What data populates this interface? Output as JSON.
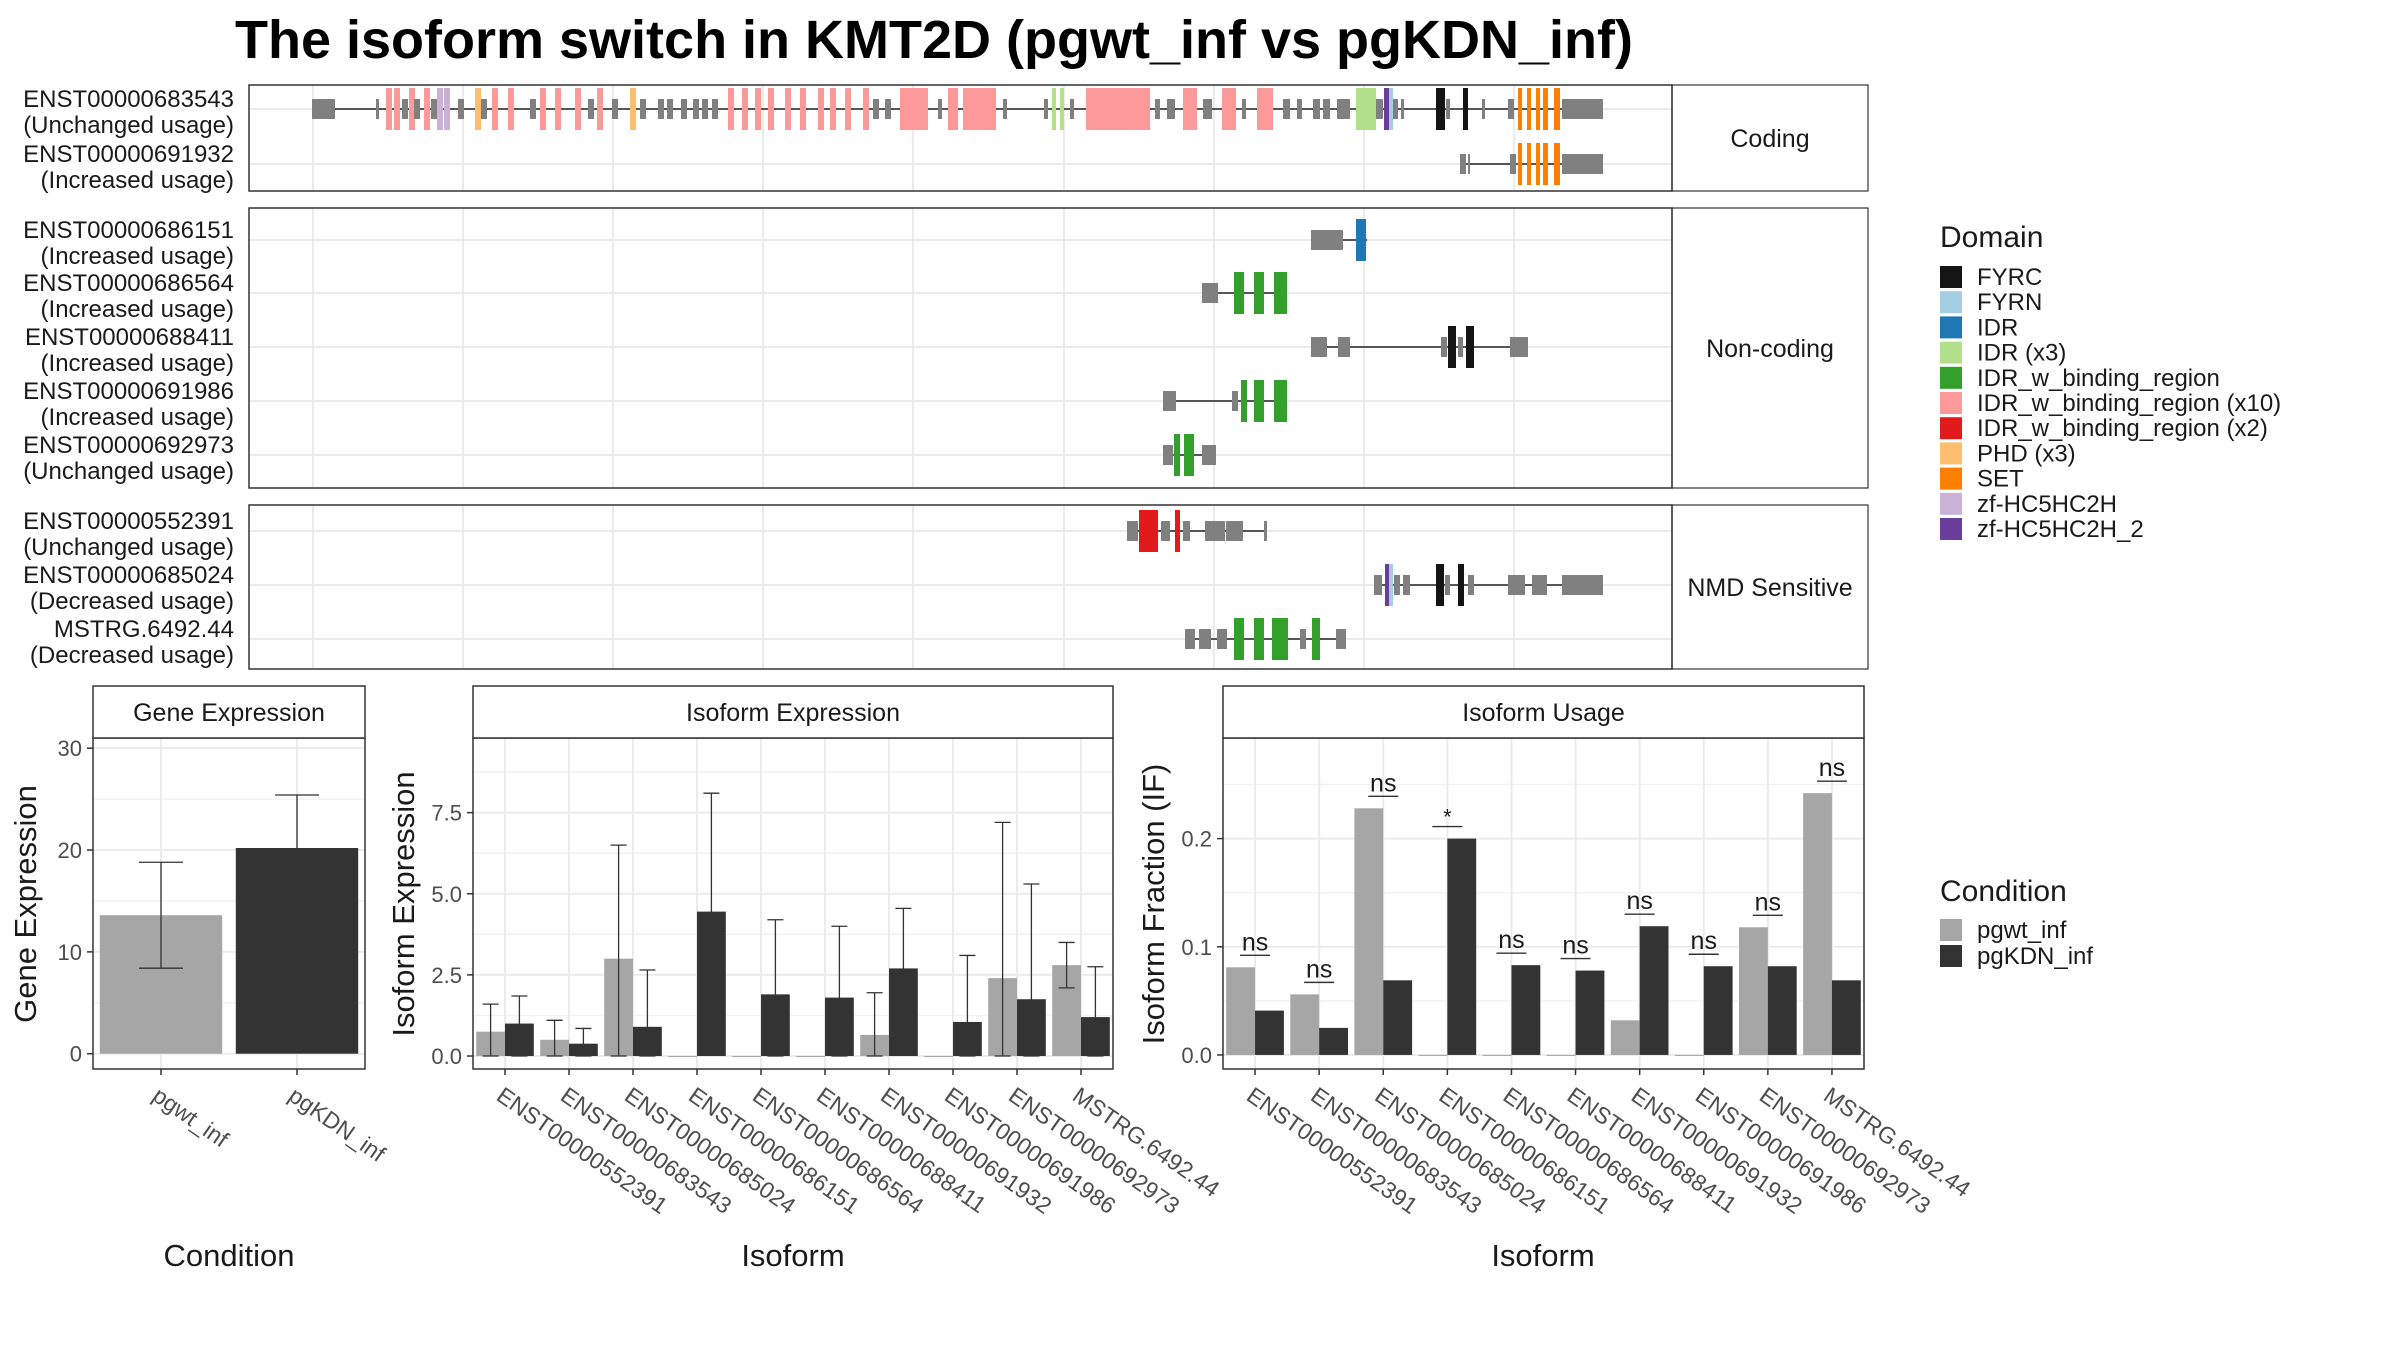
{
  "title": "The isoform switch in KMT2D (pgwt_inf vs pgKDN_inf)",
  "colors": {
    "pgwt_inf": "#A6A6A6",
    "pgKDN_inf": "#333333",
    "exon": "#808080",
    "FYRC": "#141414",
    "FYRN": "#A6CEE3",
    "IDR": "#1F78B4",
    "IDR (x3)": "#B2DF8A",
    "IDR_w_binding_region": "#33A02C",
    "IDR_w_binding_region (x10)": "#FB9A99",
    "IDR_w_binding_region (x2)": "#E31A1C",
    "PHD (x3)": "#FDBF6F",
    "SET": "#FF7F00",
    "zf-HC5HC2H": "#CAB2D6",
    "zf-HC5HC2H_2": "#6A3D9A"
  },
  "structure": {
    "groups": [
      {
        "label": "Coding",
        "transcripts": [
          {
            "id": "ENST00000683543",
            "usage": "(Unchanged usage)"
          },
          {
            "id": "ENST00000691932",
            "usage": "(Increased usage)"
          }
        ]
      },
      {
        "label": "Non-coding",
        "transcripts": [
          {
            "id": "ENST00000686151",
            "usage": "(Increased usage)"
          },
          {
            "id": "ENST00000686564",
            "usage": "(Increased usage)"
          },
          {
            "id": "ENST00000688411",
            "usage": "(Increased usage)"
          },
          {
            "id": "ENST00000691986",
            "usage": "(Increased usage)"
          },
          {
            "id": "ENST00000692973",
            "usage": "(Unchanged usage)"
          }
        ]
      },
      {
        "label": "NMD Sensitive",
        "transcripts": [
          {
            "id": "ENST00000552391",
            "usage": "(Unchanged usage)"
          },
          {
            "id": "ENST00000685024",
            "usage": "(Decreased usage)"
          },
          {
            "id": "MSTRG.6492.44",
            "usage": "(Decreased usage)"
          }
        ]
      }
    ]
  },
  "domain_legend": {
    "title": "Domain",
    "items": [
      "FYRC",
      "FYRN",
      "IDR",
      "IDR (x3)",
      "IDR_w_binding_region",
      "IDR_w_binding_region (x10)",
      "IDR_w_binding_region (x2)",
      "PHD (x3)",
      "SET",
      "zf-HC5HC2H",
      "zf-HC5HC2H_2"
    ]
  },
  "condition_legend": {
    "title": "Condition",
    "items": [
      "pgwt_inf",
      "pgKDN_inf"
    ]
  },
  "chart_data": [
    {
      "type": "bar",
      "title": "Gene Expression",
      "xlabel": "Condition",
      "ylabel": "Gene Expression",
      "ylim": [
        -1.5,
        31
      ],
      "yticks": [
        0,
        10,
        20,
        30
      ],
      "grid": true,
      "categories": [
        "pgwt_inf",
        "pgKDN_inf"
      ],
      "series": [
        {
          "values": [
            13.6,
            20.2
          ],
          "err_low": [
            8.4,
            15.0
          ],
          "err_high": [
            18.8,
            25.4
          ]
        }
      ]
    },
    {
      "type": "bar",
      "title": "Isoform Expression",
      "xlabel": "Isoform",
      "ylabel": "Isoform Expression",
      "ylim": [
        -0.4,
        9.8
      ],
      "yticks": [
        0.0,
        2.5,
        5.0,
        7.5
      ],
      "grid": true,
      "categories": [
        "ENST00000552391",
        "ENST00000683543",
        "ENST00000685024",
        "ENST00000686151",
        "ENST00000686564",
        "ENST00000688411",
        "ENST00000691932",
        "ENST00000691986",
        "ENST00000692973",
        "MSTRG.6492.44"
      ],
      "series": [
        {
          "name": "pgwt_inf",
          "values": [
            0.75,
            0.5,
            3.0,
            0.0,
            0.0,
            0.0,
            0.65,
            0.0,
            2.4,
            2.8
          ],
          "err_low": [
            0.0,
            0.0,
            0.0,
            null,
            null,
            null,
            0.0,
            null,
            0.0,
            2.1
          ],
          "err_high": [
            1.6,
            1.1,
            6.5,
            null,
            null,
            null,
            1.95,
            null,
            7.2,
            3.5
          ]
        },
        {
          "name": "pgKDN_inf",
          "values": [
            1.0,
            0.38,
            0.9,
            4.45,
            1.9,
            1.8,
            2.7,
            1.05,
            1.75,
            1.2
          ],
          "err_low": [
            0.0,
            0.0,
            0.0,
            0.8,
            0.0,
            0.0,
            0.9,
            0.0,
            0.0,
            0.0
          ],
          "err_high": [
            1.85,
            0.85,
            2.65,
            8.1,
            4.2,
            4.0,
            4.55,
            3.1,
            5.3,
            2.75
          ]
        }
      ]
    },
    {
      "type": "bar",
      "title": "Isoform Usage",
      "xlabel": "Isoform",
      "ylabel": "Isoform Fraction (IF)",
      "ylim": [
        -0.013,
        0.293
      ],
      "yticks": [
        0.0,
        0.1,
        0.2
      ],
      "grid": true,
      "categories": [
        "ENST00000552391",
        "ENST00000683543",
        "ENST00000685024",
        "ENST00000686151",
        "ENST00000686564",
        "ENST00000688411",
        "ENST00000691932",
        "ENST00000691986",
        "ENST00000692973",
        "MSTRG.6492.44"
      ],
      "series": [
        {
          "name": "pgwt_inf",
          "values": [
            0.081,
            0.056,
            0.228,
            0.0,
            0.0,
            0.0,
            0.032,
            0.0,
            0.118,
            0.242
          ]
        },
        {
          "name": "pgKDN_inf",
          "values": [
            0.041,
            0.025,
            0.069,
            0.2,
            0.083,
            0.078,
            0.119,
            0.082,
            0.082,
            0.069
          ]
        }
      ],
      "significance": [
        "ns",
        "ns",
        "ns",
        "*",
        "ns",
        "ns",
        "ns",
        "ns",
        "ns",
        "ns"
      ]
    }
  ]
}
